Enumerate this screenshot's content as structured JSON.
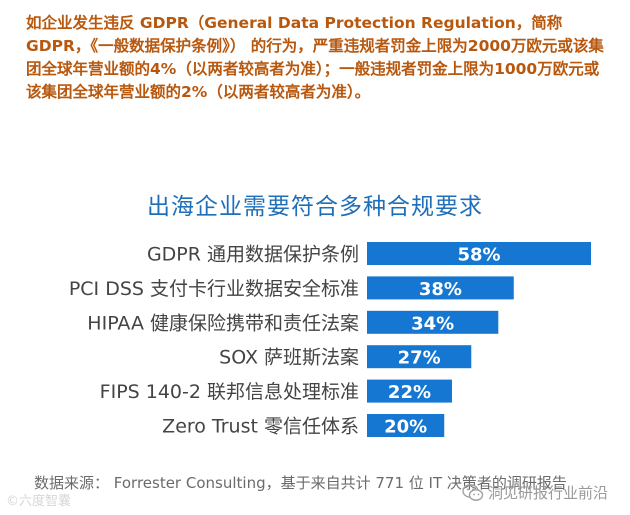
{
  "intro": {
    "text": "如企业发生违反 GDPR（General Data Protection Regulation，简称 GDPR，《一般数据保护条例》） 的行为，严重违规者罚金上限为2000万欧元或该集团全球年营业额的4%（以两者较高者为准）；一般违规者罚金上限为1000万欧元或该集团全球年营业额的2%（以两者较高者为准）。"
  },
  "chart_data": {
    "type": "bar",
    "orientation": "horizontal",
    "title": "出海企业需要符合多种合规要求",
    "categories": [
      "GDPR 通用数据保护条例",
      "PCI DSS 支付卡行业数据安全标准",
      "HIPAA 健康保险携带和责任法案",
      "SOX 萨班斯法案",
      "FIPS 140-2 联邦信息处理标准",
      "Zero Trust 零信任体系"
    ],
    "values": [
      58,
      38,
      34,
      27,
      22,
      20
    ],
    "value_labels": [
      "58%",
      "38%",
      "34%",
      "27%",
      "22%",
      "20%"
    ],
    "xlim": [
      0,
      58
    ],
    "grid": false,
    "bar_color": "#1577d1",
    "label_color": "#ffffff"
  },
  "footer": {
    "source": "数据来源： Forrester Consulting，基于来自共计 771 位 IT 决策者的调研报告"
  },
  "watermarks": {
    "left": "©六度智囊",
    "right": "洞见研报行业前沿"
  }
}
